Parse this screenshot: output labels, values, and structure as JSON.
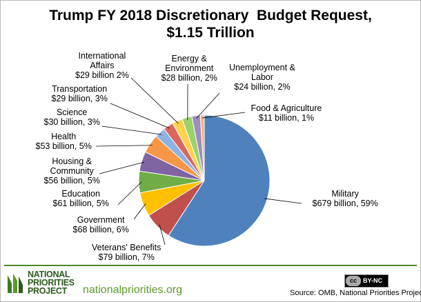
{
  "chart_data": {
    "type": "pie",
    "title": [
      "Trump FY 2018 Discretionary  Budget Request,",
      "$1.15 Trillion"
    ],
    "units": "billion",
    "slices": [
      {
        "name": "Military",
        "value": 679,
        "percent": 59,
        "color": "#4f81bd",
        "label_lines": [
          "Military",
          "$679 billion, 59%"
        ]
      },
      {
        "name": "Veterans' Benefits",
        "value": 79,
        "percent": 7,
        "color": "#c0504d",
        "label_lines": [
          "Veterans' Benefits",
          "$79 billion, 7%"
        ]
      },
      {
        "name": "Government",
        "value": 68,
        "percent": 6,
        "color": "#ffc000",
        "label_lines": [
          "Government",
          "$68 billion, 6%"
        ]
      },
      {
        "name": "Education",
        "value": 61,
        "percent": 5,
        "color": "#70ad47",
        "label_lines": [
          "Education",
          "$61 billion, 5%"
        ]
      },
      {
        "name": "Housing & Community",
        "value": 56,
        "percent": 5,
        "color": "#8064a2",
        "label_lines": [
          "Housing &",
          "Community",
          "$56 billion, 5%"
        ]
      },
      {
        "name": "Health",
        "value": 53,
        "percent": 5,
        "color": "#f79646",
        "label_lines": [
          "Health",
          "$53 billion, 5%"
        ]
      },
      {
        "name": "Science",
        "value": 30,
        "percent": 3,
        "color": "#8db3e2",
        "label_lines": [
          "Science",
          "$30 billion, 3%"
        ]
      },
      {
        "name": "Transportation",
        "value": 29,
        "percent": 3,
        "color": "#d9665f",
        "label_lines": [
          "Transportation",
          "$29 billion, 3%"
        ]
      },
      {
        "name": "International Affairs",
        "value": 29,
        "percent": 2,
        "color": "#ffd24d",
        "label_lines": [
          "International",
          "Affairs",
          "$29 billion 2%"
        ]
      },
      {
        "name": "Energy & Environment",
        "value": 28,
        "percent": 2,
        "color": "#9bd26b",
        "label_lines": [
          "Energy &",
          "Environment",
          "$28 billion, 2%"
        ]
      },
      {
        "name": "Unemployment & Labor",
        "value": 24,
        "percent": 2,
        "color": "#9f8cc0",
        "label_lines": [
          "Unemployment &",
          "Labor",
          "$24 billion, 2%"
        ]
      },
      {
        "name": "Food & Agriculture",
        "value": 11,
        "percent": 1,
        "color": "#f9b27a",
        "label_lines": [
          "Food & Agriculture",
          "$11 billion, 1%"
        ]
      }
    ]
  },
  "footer": {
    "logo_lines": [
      "NATIONAL",
      "PRIORITIES",
      "PROJECT"
    ],
    "website": "nationalpriorities.org",
    "license_badge": "cc",
    "license": "BY-NC",
    "source": "Source: OMB, National Priorities Project",
    "brand_color": "#4a8a2a"
  }
}
